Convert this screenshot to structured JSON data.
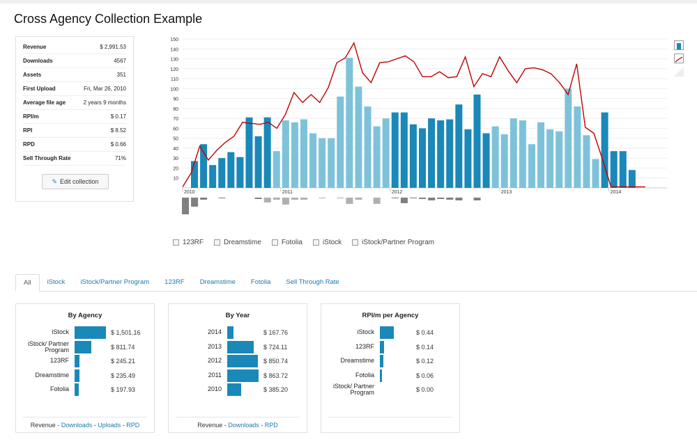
{
  "title": "Cross Agency Collection Example",
  "stats": [
    {
      "label": "Revenue",
      "value": "$ 2,991.53"
    },
    {
      "label": "Downloads",
      "value": "4567"
    },
    {
      "label": "Assets",
      "value": "351"
    },
    {
      "label": "First Upload",
      "value": "Fri, Mar 26, 2010"
    },
    {
      "label": "Average file age",
      "value": "2 years 9 months"
    },
    {
      "label": "RPI/m",
      "value": "$ 0.17"
    },
    {
      "label": "RPI",
      "value": "$ 8.52"
    },
    {
      "label": "RPD",
      "value": "$ 0.66"
    },
    {
      "label": "Sell Through Rate",
      "value": "71%"
    }
  ],
  "edit_label": "Edit collection",
  "chart_data": {
    "type": "bar",
    "y_ticks": [
      "10",
      "20",
      "30",
      "40",
      "50",
      "60",
      "70",
      "80",
      "90",
      "100",
      "110",
      "120",
      "130",
      "140",
      "150"
    ],
    "ylim": [
      0,
      150
    ],
    "x_labels": [
      "2010",
      "2011",
      "2012",
      "2013",
      "2014"
    ],
    "x_label_index": [
      0,
      10,
      22,
      34,
      46
    ],
    "values": [
      27,
      44,
      23,
      30,
      36,
      31,
      71,
      52,
      71,
      37,
      68,
      66,
      69,
      55,
      50,
      50,
      92,
      131,
      102,
      82,
      62,
      70,
      76,
      76,
      64,
      60,
      70,
      68,
      69,
      84,
      59,
      94,
      55,
      62,
      54,
      70,
      68,
      44,
      66,
      59,
      57,
      100,
      82,
      53,
      29,
      76,
      37,
      37,
      18
    ],
    "shade": [
      "d",
      "d",
      "d",
      "d",
      "d",
      "d",
      "d",
      "d",
      "d",
      "l",
      "l",
      "l",
      "l",
      "l",
      "l",
      "l",
      "l",
      "l",
      "l",
      "l",
      "l",
      "l",
      "d",
      "d",
      "d",
      "d",
      "d",
      "d",
      "d",
      "d",
      "d",
      "d",
      "d",
      "l",
      "l",
      "l",
      "l",
      "l",
      "l",
      "l",
      "l",
      "l",
      "l",
      "l",
      "l",
      "d",
      "d",
      "d",
      "d"
    ],
    "line": [
      1,
      15,
      42,
      28,
      38,
      46,
      52,
      66,
      65,
      64,
      66,
      60,
      74,
      96,
      86,
      94,
      86,
      101,
      126,
      131,
      146,
      116,
      106,
      126,
      127,
      130,
      133,
      127,
      112,
      112,
      117,
      111,
      112,
      132,
      102,
      115,
      112,
      132,
      118,
      106,
      120,
      121,
      119,
      115,
      106,
      94,
      125,
      61,
      55,
      29,
      1,
      1,
      1,
      1,
      1
    ],
    "neg": [
      -24,
      -13,
      -3,
      0,
      -1,
      0,
      0,
      0,
      -2,
      -7,
      -3,
      -10,
      -3,
      -3,
      0,
      -1,
      0,
      -1,
      -9,
      -3,
      0,
      -9,
      0,
      -1,
      -8,
      -1,
      -2,
      -4,
      -2,
      -3,
      -4,
      0,
      -4,
      0,
      0,
      0,
      0,
      0,
      0,
      0,
      0,
      0,
      0,
      0,
      0,
      0,
      0,
      0,
      0
    ],
    "neg_shade": [
      "m",
      "m",
      "m",
      "m",
      "m",
      "m",
      "m",
      "m",
      "m",
      "l",
      "l",
      "l",
      "l",
      "l",
      "l",
      "l",
      "l",
      "l",
      "l",
      "l",
      "l",
      "l",
      "m",
      "m",
      "m",
      "m",
      "m",
      "m",
      "m",
      "m",
      "m",
      "m",
      "m",
      "l",
      "l",
      "l",
      "l",
      "l",
      "l",
      "l",
      "l",
      "l",
      "l",
      "l",
      "l",
      "m",
      "m",
      "m",
      "m"
    ],
    "colors": {
      "dark": "#1a88b8",
      "light": "#7ec2da",
      "line": "#c00000",
      "neg_dark": "#808080",
      "neg_light": "#b0b0b0"
    }
  },
  "agencies": [
    "123RF",
    "Dreamstime",
    "Fotolia",
    "iStock",
    "iStock/Partner Program"
  ],
  "tabs": [
    "All",
    "iStock",
    "iStock/Partner Program",
    "123RF",
    "Dreamstime",
    "Fotolia",
    "Sell Through Rate"
  ],
  "panels": {
    "by_agency": {
      "title": "By Agency",
      "rows": [
        {
          "label": "iStock",
          "value": "$ 1,501.16",
          "frac": 1.0
        },
        {
          "label": "iStock/ Partner Program",
          "value": "$ 811.74",
          "frac": 0.54
        },
        {
          "label": "123RF",
          "value": "$ 245.21",
          "frac": 0.16
        },
        {
          "label": "Dreamstime",
          "value": "$ 235.49",
          "frac": 0.157
        },
        {
          "label": "Fotolia",
          "value": "$ 197.93",
          "frac": 0.13
        }
      ],
      "footer": {
        "first": "Revenue",
        "links": [
          "Downloads",
          "Uploads",
          "RPD"
        ]
      }
    },
    "by_year": {
      "title": "By Year",
      "rows": [
        {
          "label": "2014",
          "value": "$ 167.76",
          "frac": 0.19
        },
        {
          "label": "2013",
          "value": "$ 724.11",
          "frac": 0.84
        },
        {
          "label": "2012",
          "value": "$ 850.74",
          "frac": 0.985
        },
        {
          "label": "2011",
          "value": "$ 863.72",
          "frac": 1.0
        },
        {
          "label": "2010",
          "value": "$ 385.20",
          "frac": 0.45
        }
      ],
      "footer": {
        "first": "Revenue",
        "links": [
          "Downloads",
          "RPD"
        ]
      }
    },
    "rpim": {
      "title": "RPI/m per Agency",
      "rows": [
        {
          "label": "iStock",
          "value": "$ 0.44",
          "frac": 1.0
        },
        {
          "label": "123RF",
          "value": "$ 0.14",
          "frac": 0.32
        },
        {
          "label": "Dreamstime",
          "value": "$ 0.12",
          "frac": 0.27
        },
        {
          "label": "Fotolia",
          "value": "$ 0.06",
          "frac": 0.14
        },
        {
          "label": "iStock/ Partner Program",
          "value": "$ 0.00",
          "frac": 0.0
        }
      ]
    }
  }
}
